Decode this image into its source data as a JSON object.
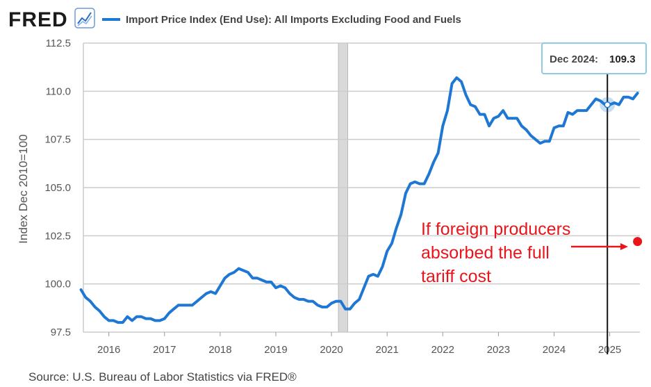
{
  "brand": {
    "name": "FRED",
    "icon": "chart-line-icon"
  },
  "source": "Source: U.S. Bureau of Labor Statistics via FRED®",
  "colors": {
    "series": "#1f77d4",
    "annotation": "#e8161b",
    "grid": "#cccccc",
    "recession": "#d9d9d9"
  },
  "chart_data": {
    "type": "line",
    "title": "",
    "legend": "Import Price Index (End Use): All Imports Excluding Food and Fuels",
    "legend_position": "top-left",
    "ylabel": "Index Dec 2010=100",
    "xlabel": "",
    "ylim": [
      97.5,
      112.5
    ],
    "xlim": [
      2015.542,
      2025.542
    ],
    "y_ticks": [
      "97.5",
      "100.0",
      "102.5",
      "105.0",
      "107.5",
      "110.0",
      "112.5"
    ],
    "x_ticks": [
      "2016",
      "2017",
      "2018",
      "2019",
      "2020",
      "2021",
      "2022",
      "2023",
      "2024",
      "2025"
    ],
    "grid": true,
    "recession_band": [
      2020.125,
      2020.292
    ],
    "series": [
      {
        "name": "Import Price Index (End Use): All Imports Excluding Food and Fuels",
        "start": "2015-07",
        "frequency": "monthly",
        "values": [
          99.7,
          99.3,
          99.1,
          98.8,
          98.6,
          98.3,
          98.1,
          98.1,
          98.0,
          98.0,
          98.3,
          98.1,
          98.3,
          98.3,
          98.2,
          98.2,
          98.1,
          98.1,
          98.2,
          98.5,
          98.7,
          98.9,
          98.9,
          98.9,
          98.9,
          99.1,
          99.3,
          99.5,
          99.6,
          99.5,
          99.9,
          100.3,
          100.5,
          100.6,
          100.8,
          100.7,
          100.6,
          100.3,
          100.3,
          100.2,
          100.1,
          100.1,
          99.8,
          99.9,
          99.8,
          99.5,
          99.3,
          99.2,
          99.2,
          99.1,
          99.1,
          98.9,
          98.8,
          98.8,
          99.0,
          99.1,
          99.1,
          98.7,
          98.7,
          99.0,
          99.2,
          99.8,
          100.4,
          100.5,
          100.4,
          100.9,
          101.7,
          102.1,
          102.9,
          103.6,
          104.7,
          105.2,
          105.3,
          105.2,
          105.2,
          105.7,
          106.3,
          106.8,
          108.2,
          109.0,
          110.4,
          110.7,
          110.5,
          109.8,
          109.3,
          109.2,
          108.8,
          108.8,
          108.2,
          108.6,
          108.7,
          109.0,
          108.6,
          108.6,
          108.6,
          108.2,
          108.0,
          107.7,
          107.5,
          107.3,
          107.4,
          107.4,
          108.1,
          108.2,
          108.2,
          108.9,
          108.8,
          109.0,
          109.0,
          109.0,
          109.3,
          109.6,
          109.5,
          109.3,
          109.3,
          109.4,
          109.3,
          109.7,
          109.7,
          109.6,
          109.9
        ]
      }
    ],
    "annotations": [
      {
        "text": "If foreign producers",
        "kind": "text"
      },
      {
        "text": "absorbed the full",
        "kind": "text"
      },
      {
        "text": "tariff cost",
        "kind": "text"
      },
      {
        "kind": "marker",
        "x": 2025.5,
        "y": 102.2
      }
    ],
    "tooltip": {
      "label": "Dec 2024:",
      "value": "109.3",
      "x": 2024.958,
      "y": 109.3
    }
  }
}
